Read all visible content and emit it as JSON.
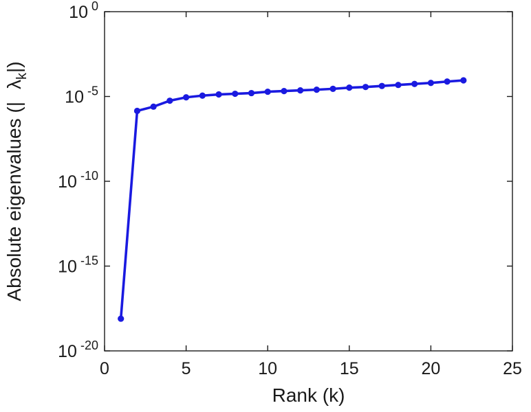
{
  "chart_data": {
    "type": "line",
    "title": "",
    "xlabel": "Rank (k)",
    "ylabel": "Absolute eigenvalues (| λ_k |)",
    "ylabel_prefix": "Absolute eigenvalues (|",
    "ylabel_symbol": "λ",
    "ylabel_subscript": "k",
    "ylabel_suffix": "|)",
    "x": [
      1,
      2,
      3,
      4,
      5,
      6,
      7,
      8,
      9,
      10,
      11,
      12,
      13,
      14,
      15,
      16,
      17,
      18,
      19,
      20,
      21,
      22
    ],
    "y_exponents": [
      -18.1,
      -5.85,
      -5.6,
      -5.25,
      -5.05,
      -4.95,
      -4.88,
      -4.84,
      -4.8,
      -4.72,
      -4.68,
      -4.64,
      -4.6,
      -4.55,
      -4.48,
      -4.44,
      -4.38,
      -4.32,
      -4.26,
      -4.2,
      -4.12,
      -4.05
    ],
    "y_scale": "log10",
    "xlim": [
      0,
      25
    ],
    "ylim_exponents": [
      -20,
      0
    ],
    "x_ticks": [
      0,
      5,
      10,
      15,
      20,
      25
    ],
    "y_tick_exponents": [
      0,
      -5,
      -10,
      -15,
      -20
    ],
    "y_tick_base": "10",
    "line_color": "#1a1ae0",
    "axis_color": "#1a1a1a",
    "grid": false,
    "legend": null,
    "marker": "dot"
  }
}
